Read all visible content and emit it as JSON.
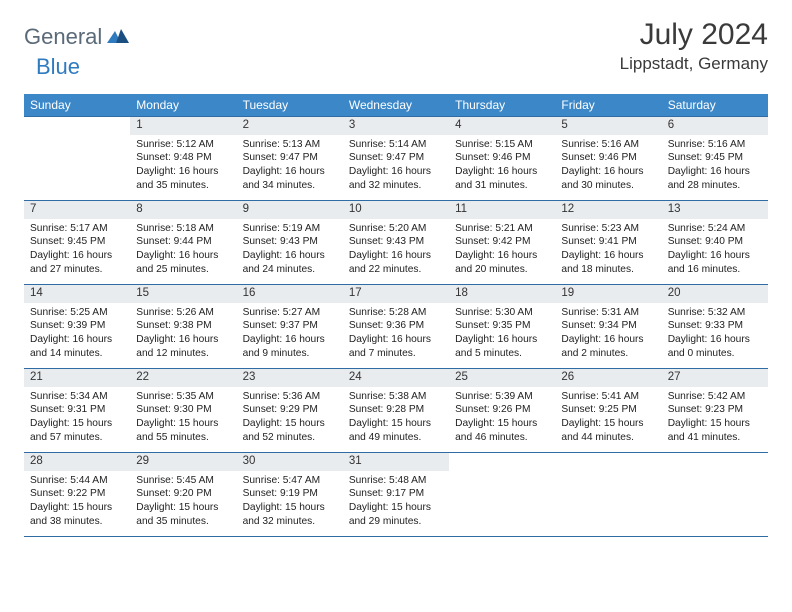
{
  "logo": {
    "part1": "General",
    "part2": "Blue"
  },
  "title": "July 2024",
  "location": "Lippstadt, Germany",
  "colors": {
    "header_bg": "#3b87c8",
    "header_text": "#ffffff",
    "daynum_bg": "#e9ecef",
    "rule": "#2f6ca3",
    "logo_gray": "#5a6a78",
    "logo_blue": "#2f7bbf"
  },
  "weekdays": [
    "Sunday",
    "Monday",
    "Tuesday",
    "Wednesday",
    "Thursday",
    "Friday",
    "Saturday"
  ],
  "weeks": [
    {
      "nums": [
        "",
        "1",
        "2",
        "3",
        "4",
        "5",
        "6"
      ],
      "details": [
        "",
        "Sunrise: 5:12 AM\nSunset: 9:48 PM\nDaylight: 16 hours and 35 minutes.",
        "Sunrise: 5:13 AM\nSunset: 9:47 PM\nDaylight: 16 hours and 34 minutes.",
        "Sunrise: 5:14 AM\nSunset: 9:47 PM\nDaylight: 16 hours and 32 minutes.",
        "Sunrise: 5:15 AM\nSunset: 9:46 PM\nDaylight: 16 hours and 31 minutes.",
        "Sunrise: 5:16 AM\nSunset: 9:46 PM\nDaylight: 16 hours and 30 minutes.",
        "Sunrise: 5:16 AM\nSunset: 9:45 PM\nDaylight: 16 hours and 28 minutes."
      ]
    },
    {
      "nums": [
        "7",
        "8",
        "9",
        "10",
        "11",
        "12",
        "13"
      ],
      "details": [
        "Sunrise: 5:17 AM\nSunset: 9:45 PM\nDaylight: 16 hours and 27 minutes.",
        "Sunrise: 5:18 AM\nSunset: 9:44 PM\nDaylight: 16 hours and 25 minutes.",
        "Sunrise: 5:19 AM\nSunset: 9:43 PM\nDaylight: 16 hours and 24 minutes.",
        "Sunrise: 5:20 AM\nSunset: 9:43 PM\nDaylight: 16 hours and 22 minutes.",
        "Sunrise: 5:21 AM\nSunset: 9:42 PM\nDaylight: 16 hours and 20 minutes.",
        "Sunrise: 5:23 AM\nSunset: 9:41 PM\nDaylight: 16 hours and 18 minutes.",
        "Sunrise: 5:24 AM\nSunset: 9:40 PM\nDaylight: 16 hours and 16 minutes."
      ]
    },
    {
      "nums": [
        "14",
        "15",
        "16",
        "17",
        "18",
        "19",
        "20"
      ],
      "details": [
        "Sunrise: 5:25 AM\nSunset: 9:39 PM\nDaylight: 16 hours and 14 minutes.",
        "Sunrise: 5:26 AM\nSunset: 9:38 PM\nDaylight: 16 hours and 12 minutes.",
        "Sunrise: 5:27 AM\nSunset: 9:37 PM\nDaylight: 16 hours and 9 minutes.",
        "Sunrise: 5:28 AM\nSunset: 9:36 PM\nDaylight: 16 hours and 7 minutes.",
        "Sunrise: 5:30 AM\nSunset: 9:35 PM\nDaylight: 16 hours and 5 minutes.",
        "Sunrise: 5:31 AM\nSunset: 9:34 PM\nDaylight: 16 hours and 2 minutes.",
        "Sunrise: 5:32 AM\nSunset: 9:33 PM\nDaylight: 16 hours and 0 minutes."
      ]
    },
    {
      "nums": [
        "21",
        "22",
        "23",
        "24",
        "25",
        "26",
        "27"
      ],
      "details": [
        "Sunrise: 5:34 AM\nSunset: 9:31 PM\nDaylight: 15 hours and 57 minutes.",
        "Sunrise: 5:35 AM\nSunset: 9:30 PM\nDaylight: 15 hours and 55 minutes.",
        "Sunrise: 5:36 AM\nSunset: 9:29 PM\nDaylight: 15 hours and 52 minutes.",
        "Sunrise: 5:38 AM\nSunset: 9:28 PM\nDaylight: 15 hours and 49 minutes.",
        "Sunrise: 5:39 AM\nSunset: 9:26 PM\nDaylight: 15 hours and 46 minutes.",
        "Sunrise: 5:41 AM\nSunset: 9:25 PM\nDaylight: 15 hours and 44 minutes.",
        "Sunrise: 5:42 AM\nSunset: 9:23 PM\nDaylight: 15 hours and 41 minutes."
      ]
    },
    {
      "nums": [
        "28",
        "29",
        "30",
        "31",
        "",
        "",
        ""
      ],
      "details": [
        "Sunrise: 5:44 AM\nSunset: 9:22 PM\nDaylight: 15 hours and 38 minutes.",
        "Sunrise: 5:45 AM\nSunset: 9:20 PM\nDaylight: 15 hours and 35 minutes.",
        "Sunrise: 5:47 AM\nSunset: 9:19 PM\nDaylight: 15 hours and 32 minutes.",
        "Sunrise: 5:48 AM\nSunset: 9:17 PM\nDaylight: 15 hours and 29 minutes.",
        "",
        "",
        ""
      ]
    }
  ]
}
